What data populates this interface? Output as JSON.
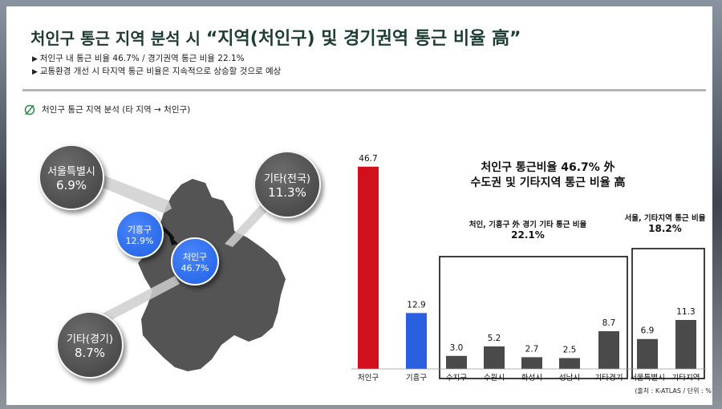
{
  "title": {
    "prefix": "처인구 통근 지역 분석 시 ",
    "emphasis": "“지역(처인구) 및 경기권역 통근 비율 高”"
  },
  "bullets": [
    "처인구 내 통근 비율 46.7% / 경기권역 통근 비율 22.1%",
    "교통환경 개선 시 타지역 통근 비율은 지속적으로 상승할 것으로 예상"
  ],
  "section_title": "처인구 통근 지역 분석 (타 지역 → 처인구)",
  "map": {
    "bubbles": [
      {
        "name": "서울특별시",
        "value": "6.9%"
      },
      {
        "name": "기타(전국)",
        "value": "11.3%"
      },
      {
        "name": "기흥구",
        "value": "12.9%"
      },
      {
        "name": "처인구",
        "value": "46.7%"
      },
      {
        "name": "기타(경기)",
        "value": "8.7%"
      }
    ],
    "colors": {
      "region": "#555555",
      "bubble_gray": "#505050",
      "bubble_blue": "#2a6af0"
    }
  },
  "headline": [
    "처인구 통근비율 46.7% 外",
    "수도권 및 기타지역 통근 비율 高"
  ],
  "groups": [
    {
      "label": "처인, 기흥구 外 경기 기타 통근 비율",
      "value": "22.1%"
    },
    {
      "label": "서울, 기타지역 통근 비율",
      "value": "18.2%"
    }
  ],
  "source": "(출처 : K-ATLAS / 단위 : %)",
  "chart_data": {
    "type": "bar",
    "categories": [
      "처인구",
      "기흥구",
      "수지구",
      "수원시",
      "화성시",
      "성남시",
      "기타경기",
      "서울특별시",
      "기타지역"
    ],
    "values": [
      46.7,
      12.9,
      3.0,
      5.2,
      2.7,
      2.5,
      8.7,
      6.9,
      11.3
    ],
    "value_labels": [
      "46.7",
      "12.9",
      "3.0",
      "5.2",
      "2.7",
      "2.5",
      "8.7",
      "6.9",
      "11.3"
    ],
    "ylim": [
      0,
      50
    ],
    "colors": [
      "#d0101c",
      "#2a5fe0",
      "#4a4a4a",
      "#4a4a4a",
      "#4a4a4a",
      "#4a4a4a",
      "#4a4a4a",
      "#4a4a4a",
      "#4a4a4a"
    ],
    "title": "",
    "xlabel": "",
    "ylabel": ""
  }
}
